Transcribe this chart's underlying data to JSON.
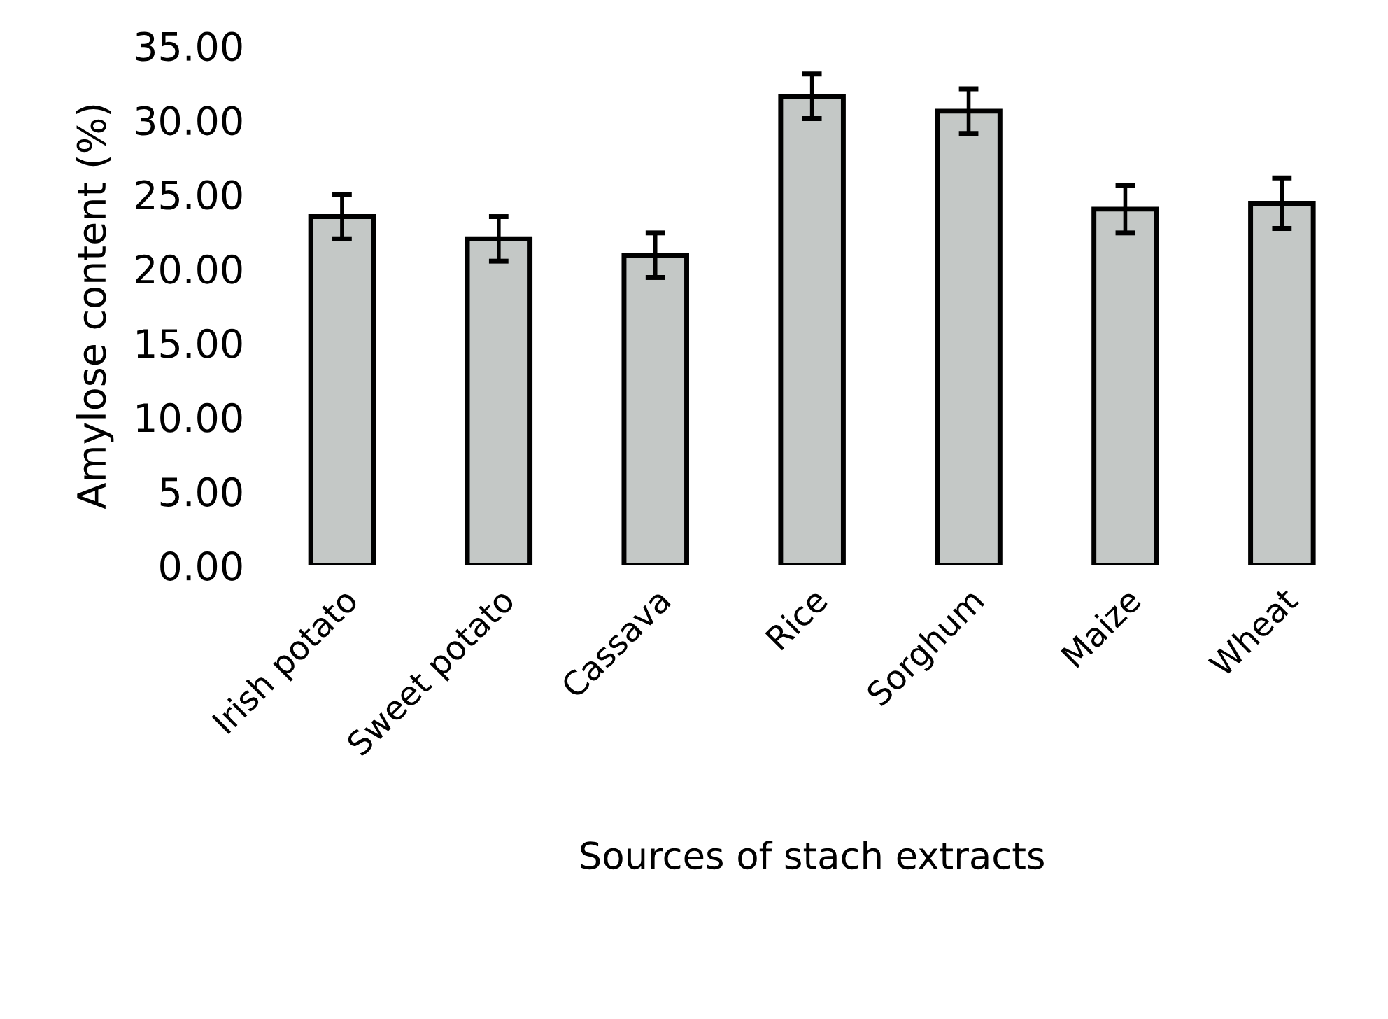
{
  "chart_data": {
    "type": "bar",
    "xlabel": "Sources of stach extracts",
    "ylabel": "Amylose content (%)",
    "categories": [
      "Irish potato",
      "Sweet potato",
      "Cassava",
      "Rice",
      "Sorghum",
      "Maize",
      "Wheat"
    ],
    "values": [
      23.5,
      22.0,
      20.9,
      31.6,
      30.6,
      24.0,
      24.4
    ],
    "errors": [
      1.5,
      1.5,
      1.5,
      1.5,
      1.5,
      1.6,
      1.7
    ],
    "color": "#c4c8c6",
    "ylim": [
      0,
      35
    ],
    "yticks": [
      {
        "value": 0,
        "label": "0.00"
      },
      {
        "value": 5,
        "label": "5.00"
      },
      {
        "value": 10,
        "label": "10.00"
      },
      {
        "value": 15,
        "label": "15.00"
      },
      {
        "value": 20,
        "label": "20.00"
      },
      {
        "value": 25,
        "label": "25.00"
      },
      {
        "value": 30,
        "label": "30.00"
      },
      {
        "value": 35,
        "label": "35.00"
      }
    ],
    "grid": false
  }
}
